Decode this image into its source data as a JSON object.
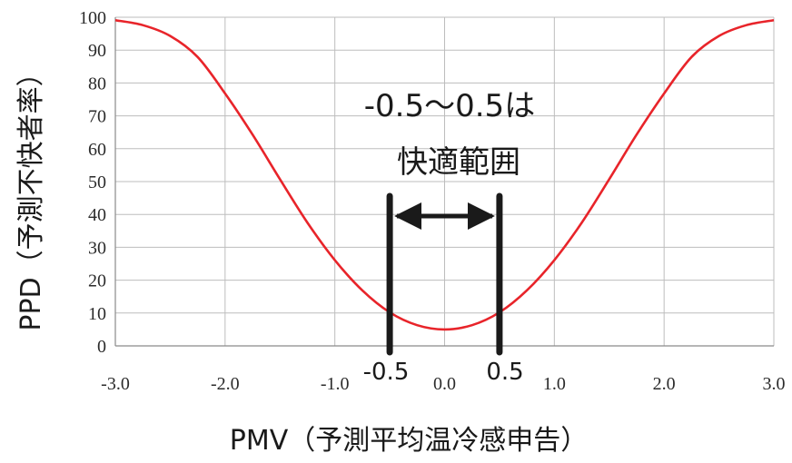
{
  "chart_data": {
    "type": "line",
    "title": "",
    "xlabel": "PMV（予測平均温冷感申告）",
    "ylabel": "PPD（予測不快者率）",
    "xlim": [
      -3.0,
      3.0
    ],
    "ylim": [
      0,
      100
    ],
    "x_ticks": [
      "-3.0",
      "-2.0",
      "-1.0",
      "0.0",
      "1.0",
      "2.0",
      "3.0"
    ],
    "y_ticks": [
      "0",
      "10",
      "20",
      "30",
      "40",
      "50",
      "60",
      "70",
      "80",
      "90",
      "100"
    ],
    "grid": true,
    "line_color": "#e8242a",
    "series": [
      {
        "x": [
          -3.0,
          -2.75,
          -2.5,
          -2.25,
          -2.0,
          -1.75,
          -1.5,
          -1.25,
          -1.0,
          -0.75,
          -0.5,
          -0.25,
          0.0,
          0.25,
          0.5,
          0.75,
          1.0,
          1.25,
          1.5,
          1.75,
          2.0,
          2.25,
          2.5,
          2.75,
          3.0
        ],
        "y": [
          99.1,
          97.6,
          94.3,
          87.9,
          76.8,
          64.3,
          50.7,
          37.5,
          26.1,
          16.9,
          10.2,
          6.3,
          5.0,
          6.3,
          10.2,
          16.9,
          26.1,
          37.5,
          50.7,
          64.3,
          76.8,
          87.9,
          94.3,
          97.6,
          99.1
        ]
      }
    ],
    "annotations": {
      "range_text": "-0.5～0.5は",
      "comfort_text": "快適範囲",
      "left_marker_label": "-0.5",
      "right_marker_label": "0.5",
      "left_marker_x": -0.5,
      "right_marker_x": 0.5
    }
  }
}
